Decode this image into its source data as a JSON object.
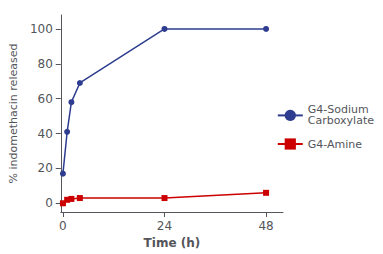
{
  "chart_data": {
    "type": "line",
    "xlabel": "Time (h)",
    "ylabel": "% indomethacin released",
    "x": [
      0,
      1,
      2,
      4,
      24,
      48
    ],
    "series": [
      {
        "name": "G4-Sodium\nCarboxylate",
        "color": "#2E3D8F",
        "marker": "circle",
        "line_style": "solid",
        "values": [
          17,
          41,
          58,
          69,
          100,
          100
        ]
      },
      {
        "name": "G4-Amine",
        "color": "#CC0000",
        "marker": "square",
        "line_style": "solid",
        "values": [
          0,
          2,
          2.5,
          3,
          3,
          6
        ]
      }
    ],
    "xlim": [
      -0.5,
      52
    ],
    "ylim": [
      -5,
      108
    ],
    "xticks": [
      0,
      24,
      48
    ],
    "yticks": [
      0,
      20,
      40,
      60,
      80,
      100
    ],
    "grid": false,
    "legend": "right"
  }
}
